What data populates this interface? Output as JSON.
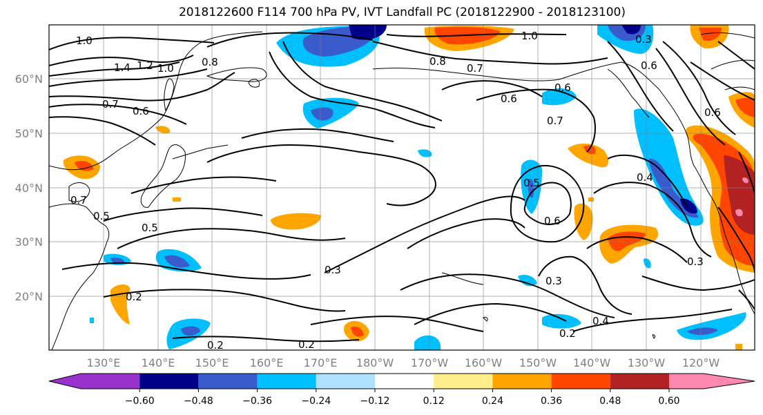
{
  "title": "2018122600 F114 700 hPa PV, IVT Landfall PC (2018122900 - 2018123100)",
  "lat_labels": [
    "60°N",
    "50°N",
    "40°N",
    "30°N",
    "20°N"
  ],
  "lon_labels": [
    "130°E",
    "140°E",
    "150°E",
    "160°E",
    "170°E",
    "180°W",
    "170°W",
    "160°W",
    "150°W",
    "140°W",
    "130°W",
    "120°W"
  ],
  "colorbar": {
    "colors": [
      "#9932cc",
      "#00008b",
      "#3a5bcc",
      "#00bfff",
      "#b0e2ff",
      "#ffffff",
      "#ffec8b",
      "#ffa500",
      "#ff4500",
      "#b22222",
      "#ff88b0"
    ],
    "tick_labels": [
      "−0.60",
      "−0.48",
      "−0.36",
      "−0.24",
      "−0.12",
      "0.12",
      "0.24",
      "0.36",
      "0.48",
      "0.60"
    ]
  },
  "contour_labels": [
    "1.0",
    "1.4",
    "1.2",
    "1.0",
    "0.8",
    "0.7",
    "0.6",
    "0.7",
    "0.5",
    "0.5",
    "0.2",
    "0.2",
    "0.2",
    "0.3",
    "1.0",
    "0.8",
    "0.7",
    "0.6",
    "0.6",
    "0.7",
    "0.5",
    "0.6",
    "0.3",
    "0.4",
    "0.2",
    "0.3",
    "0.4",
    "0.6",
    "0.3",
    "0.6"
  ]
}
